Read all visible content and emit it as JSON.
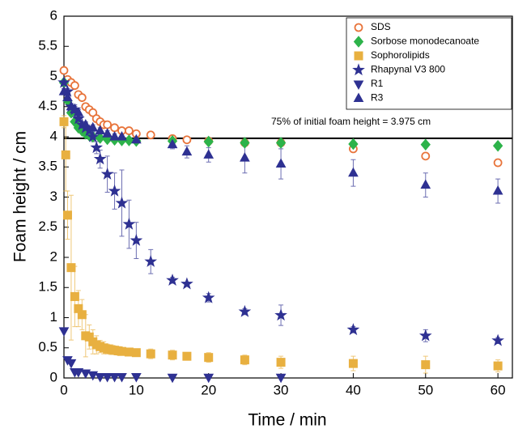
{
  "chart_data": {
    "type": "scatter",
    "xlabel": "Time / min",
    "ylabel": "Foam height / cm",
    "xlim": [
      0,
      62
    ],
    "ylim": [
      0,
      6
    ],
    "xticks": [
      0,
      10,
      20,
      30,
      40,
      50,
      60
    ],
    "yticks": [
      0,
      0.5,
      1,
      1.5,
      2,
      2.5,
      3,
      3.5,
      4,
      4.5,
      5,
      5.5,
      6
    ],
    "hline": 3.975,
    "annotation": "75% of initial foam height = 3.975 cm",
    "legend": "upper right",
    "series": [
      {
        "name": "SDS",
        "color": "#e8743b",
        "marker": "circle-open",
        "x": [
          0,
          0.5,
          1,
          1.5,
          2,
          2.5,
          3,
          3.5,
          4,
          4.5,
          5,
          5.5,
          6,
          7,
          8,
          9,
          10,
          12,
          15,
          17,
          20,
          25,
          30,
          40,
          50,
          60
        ],
        "values": [
          5.1,
          4.95,
          4.9,
          4.85,
          4.7,
          4.65,
          4.5,
          4.45,
          4.4,
          4.3,
          4.25,
          4.2,
          4.2,
          4.15,
          4.1,
          4.1,
          4.05,
          4.03,
          3.97,
          3.95,
          3.93,
          3.9,
          3.9,
          3.8,
          3.68,
          3.57
        ]
      },
      {
        "name": "Sorbose monodecanoate",
        "color": "#2db34a",
        "marker": "diamond",
        "x": [
          0,
          0.5,
          1,
          1.5,
          2,
          2.5,
          3,
          3.5,
          4,
          5,
          6,
          7,
          8,
          9,
          10,
          15,
          20,
          25,
          30,
          40,
          50,
          60
        ],
        "values": [
          4.9,
          4.6,
          4.4,
          4.25,
          4.15,
          4.1,
          4.05,
          4.02,
          4.0,
          3.98,
          3.96,
          3.95,
          3.94,
          3.94,
          3.93,
          3.93,
          3.92,
          3.9,
          3.9,
          3.88,
          3.87,
          3.85
        ]
      },
      {
        "name": "Sophorolipids",
        "color": "#e8b040",
        "marker": "square",
        "x": [
          0,
          0.25,
          0.5,
          1,
          1.5,
          2,
          2.5,
          3,
          3.5,
          4,
          4.5,
          5,
          5.5,
          6,
          6.5,
          7,
          7.5,
          8,
          9,
          10,
          12,
          15,
          17,
          20,
          25,
          30,
          40,
          50,
          60
        ],
        "values": [
          4.25,
          3.7,
          2.7,
          1.83,
          1.35,
          1.15,
          1.05,
          0.7,
          0.68,
          0.6,
          0.55,
          0.52,
          0.5,
          0.48,
          0.47,
          0.46,
          0.45,
          0.44,
          0.43,
          0.42,
          0.4,
          0.38,
          0.36,
          0.34,
          0.3,
          0.26,
          0.24,
          0.22,
          0.2
        ],
        "errors": [
          0.1,
          0.6,
          0.4,
          1.2,
          0.5,
          0.3,
          0.25,
          0.35,
          0.2,
          0.2,
          0.15,
          0.1,
          0.1,
          0.08,
          0.08,
          0.07,
          0.07,
          0.06,
          0.06,
          0.05,
          0.08,
          0.08,
          0.05,
          0.08,
          0.08,
          0.1,
          0.12,
          0.14,
          0.1
        ]
      },
      {
        "name": "Rhapynal V3 800",
        "color": "#2e3192",
        "marker": "star",
        "x": [
          0,
          0.5,
          1,
          1.5,
          2,
          2.5,
          3,
          3.5,
          4,
          4.5,
          5,
          6,
          7,
          8,
          9,
          10,
          12,
          15,
          17,
          20,
          25,
          30,
          40,
          50,
          60
        ],
        "values": [
          4.9,
          4.75,
          4.5,
          4.45,
          4.3,
          4.2,
          4.15,
          4.1,
          4.0,
          3.82,
          3.63,
          3.38,
          3.1,
          2.9,
          2.55,
          2.28,
          1.93,
          1.62,
          1.56,
          1.33,
          1.1,
          1.04,
          0.8,
          0.7,
          0.62
        ],
        "errors": [
          0.05,
          0.05,
          0.05,
          0.05,
          0.05,
          0.05,
          0.05,
          0.05,
          0.08,
          0.1,
          0.15,
          0.3,
          0.3,
          0.55,
          0.4,
          0.3,
          0.2,
          0.05,
          0.03,
          0.07,
          0.05,
          0.17,
          0.05,
          0.1,
          0.05
        ]
      },
      {
        "name": "R1",
        "color": "#2e3192",
        "marker": "triangle-down",
        "x": [
          0,
          0.5,
          1,
          1.5,
          2,
          3,
          4,
          5,
          6,
          7,
          8,
          10,
          15,
          20,
          30
        ],
        "values": [
          0.78,
          0.3,
          0.25,
          0.1,
          0.1,
          0.08,
          0.05,
          0.02,
          0.02,
          0.02,
          0.02,
          0.02,
          0.01,
          0.01,
          0.01
        ]
      },
      {
        "name": "R3",
        "color": "#2e3192",
        "marker": "triangle-up",
        "x": [
          0,
          0.5,
          1,
          1.5,
          2,
          3,
          4,
          5,
          6,
          7,
          8,
          10,
          15,
          17,
          20,
          25,
          30,
          40,
          50,
          60
        ],
        "values": [
          4.75,
          4.65,
          4.5,
          4.45,
          4.4,
          4.2,
          4.15,
          4.1,
          4.05,
          4.0,
          4.0,
          3.95,
          3.87,
          3.75,
          3.7,
          3.65,
          3.55,
          3.4,
          3.2,
          3.1
        ],
        "errors": [
          0.05,
          0.05,
          0.05,
          0.05,
          0.05,
          0.05,
          0.05,
          0.05,
          0.05,
          0.05,
          0.05,
          0.05,
          0.07,
          0.1,
          0.12,
          0.25,
          0.25,
          0.22,
          0.2,
          0.2
        ]
      }
    ]
  }
}
